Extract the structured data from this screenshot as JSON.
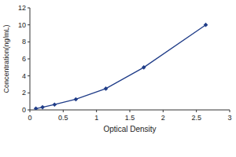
{
  "chart_data": {
    "type": "line",
    "x_label": "Optical Density",
    "y_label": "Concentration(ng/mL)",
    "x": [
      0.09,
      0.19,
      0.37,
      0.69,
      1.14,
      1.71,
      2.64
    ],
    "values": [
      0.156,
      0.312,
      0.625,
      1.25,
      2.5,
      5,
      10
    ],
    "color": "#1f3c88",
    "marker": "diamond",
    "xlim": [
      0,
      3
    ],
    "xticks": [
      0,
      0.5,
      1,
      1.5,
      2,
      2.5,
      3
    ],
    "ylim": [
      0,
      12
    ],
    "yticks": [
      0,
      2,
      4,
      6,
      8,
      10,
      12
    ],
    "grid": false
  }
}
